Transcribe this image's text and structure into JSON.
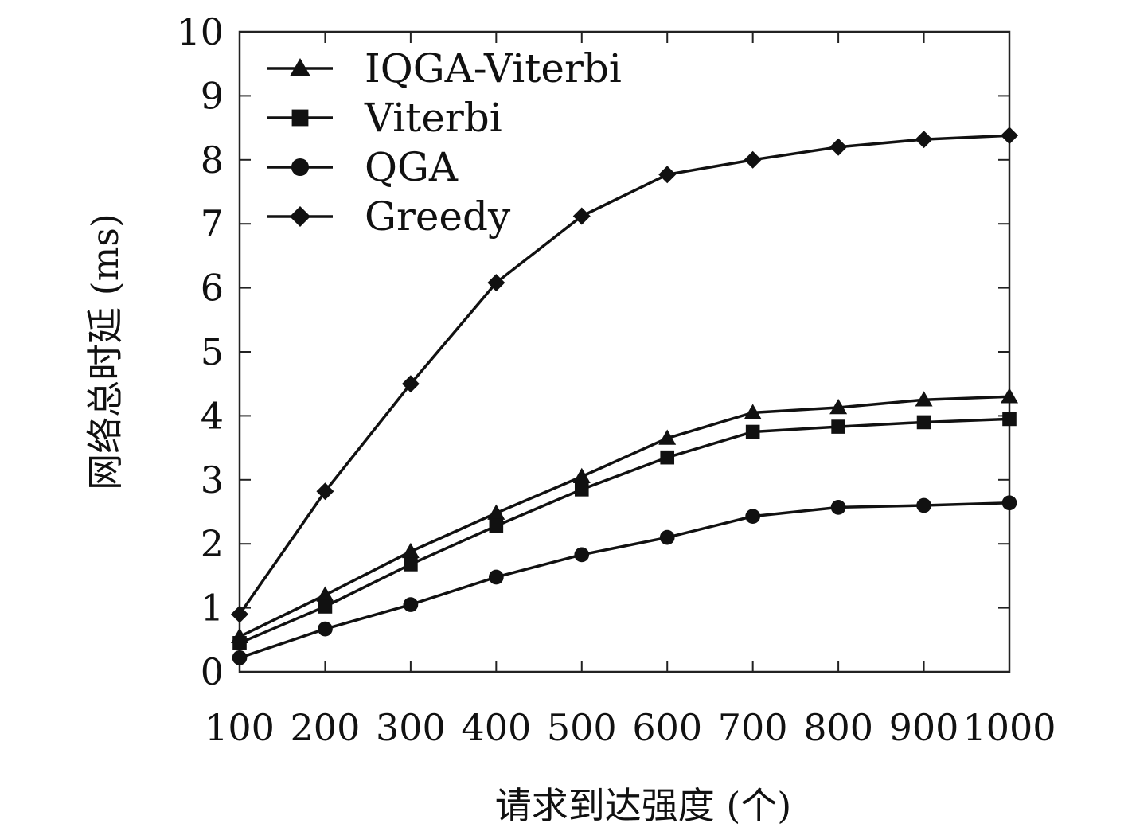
{
  "chart_data": {
    "type": "line",
    "xlabel": "请求到达强度 (个)",
    "ylabel": "网络总时延 (ms)",
    "x": [
      100,
      200,
      300,
      400,
      500,
      600,
      700,
      800,
      900,
      1000
    ],
    "x_ticks": [
      "100",
      "200",
      "300",
      "400",
      "500",
      "600",
      "700",
      "800",
      "900",
      "1000"
    ],
    "y_ticks": [
      "0",
      "1",
      "2",
      "3",
      "4",
      "5",
      "6",
      "7",
      "8",
      "9",
      "10"
    ],
    "xlim": [
      100,
      1000
    ],
    "ylim": [
      0,
      10
    ],
    "grid": false,
    "legend_position": "top-left",
    "series": [
      {
        "name": "IQGA-Viterbi",
        "marker": "triangle",
        "values": [
          0.55,
          1.2,
          1.88,
          2.48,
          3.05,
          3.65,
          4.05,
          4.13,
          4.25,
          4.3
        ]
      },
      {
        "name": "Viterbi",
        "marker": "square",
        "values": [
          0.45,
          1.02,
          1.68,
          2.28,
          2.85,
          3.35,
          3.75,
          3.83,
          3.9,
          3.95
        ]
      },
      {
        "name": "QGA",
        "marker": "circle",
        "values": [
          0.22,
          0.67,
          1.05,
          1.48,
          1.83,
          2.1,
          2.43,
          2.57,
          2.6,
          2.64
        ]
      },
      {
        "name": "Greedy",
        "marker": "diamond",
        "values": [
          0.9,
          2.82,
          4.5,
          6.08,
          7.12,
          7.77,
          8.0,
          8.2,
          8.32,
          8.38
        ]
      }
    ]
  }
}
